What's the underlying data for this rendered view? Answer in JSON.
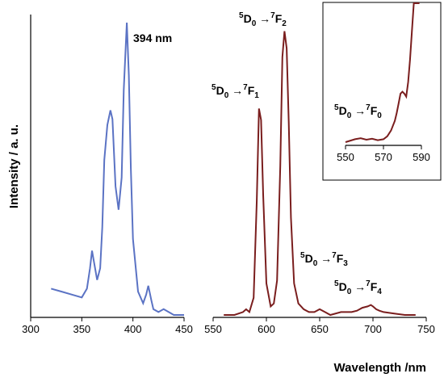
{
  "chart_data": {
    "type": "line",
    "xlabel": "Wavelength /nm",
    "ylabel": "Intensity / a. u.",
    "colors": {
      "excitation": "#5b73c4",
      "emission": "#7a1e1e",
      "highlight": "#f4b8e8"
    },
    "panels": [
      {
        "name": "excitation",
        "xlim": [
          300,
          450
        ],
        "xticks": [
          "300",
          "350",
          "400",
          "450"
        ],
        "x": [
          320,
          330,
          340,
          350,
          355,
          358,
          360,
          362,
          365,
          368,
          370,
          372,
          375,
          378,
          380,
          383,
          386,
          389,
          391,
          394,
          396,
          398,
          400,
          405,
          410,
          413,
          415,
          418,
          420,
          425,
          430,
          435,
          440,
          450
        ],
        "y": [
          0.09,
          0.08,
          0.07,
          0.06,
          0.09,
          0.16,
          0.22,
          0.18,
          0.12,
          0.16,
          0.3,
          0.53,
          0.65,
          0.7,
          0.67,
          0.44,
          0.36,
          0.47,
          0.77,
          1.0,
          0.82,
          0.5,
          0.26,
          0.08,
          0.04,
          0.07,
          0.1,
          0.05,
          0.02,
          0.01,
          0.02,
          0.01,
          0.0,
          0.0
        ]
      },
      {
        "name": "emission",
        "xlim": [
          550,
          750
        ],
        "xticks": [
          "550",
          "600",
          "650",
          "700",
          "750"
        ],
        "x": [
          560,
          570,
          578,
          581,
          584,
          588,
          591,
          593,
          595,
          597,
          600,
          604,
          607,
          610,
          613,
          615,
          617,
          619,
          621,
          623,
          626,
          630,
          635,
          640,
          645,
          650,
          655,
          660,
          670,
          680,
          685,
          690,
          695,
          698,
          700,
          703,
          706,
          710,
          720,
          730,
          740
        ],
        "y": [
          0.0,
          0.0,
          0.01,
          0.02,
          0.01,
          0.06,
          0.4,
          0.72,
          0.68,
          0.42,
          0.11,
          0.03,
          0.04,
          0.12,
          0.52,
          0.9,
          0.99,
          0.93,
          0.67,
          0.34,
          0.11,
          0.04,
          0.02,
          0.01,
          0.01,
          0.02,
          0.01,
          0.0,
          0.01,
          0.01,
          0.015,
          0.025,
          0.03,
          0.035,
          0.03,
          0.02,
          0.015,
          0.01,
          0.005,
          0.0,
          0.0
        ]
      }
    ],
    "inset": {
      "xlim": [
        550,
        590
      ],
      "xticks": [
        "550",
        "570",
        "590"
      ],
      "x": [
        550,
        555,
        558,
        561,
        564,
        567,
        570,
        572,
        574,
        576,
        577,
        578,
        579,
        580,
        581,
        582,
        583,
        584,
        585,
        586,
        587,
        588,
        589
      ],
      "y": [
        0.0,
        0.03,
        0.04,
        0.025,
        0.035,
        0.02,
        0.03,
        0.06,
        0.12,
        0.22,
        0.3,
        0.4,
        0.5,
        0.52,
        0.5,
        0.47,
        0.62,
        0.85,
        1.15,
        1.5,
        1.85,
        2.25,
        2.7
      ]
    },
    "annotations": [
      {
        "text": "394 nm",
        "x": 394,
        "panel": "excitation"
      },
      {
        "text": "5D0 →7F1",
        "sup1": "5",
        "base1": "D",
        "sub1": "0",
        "arrow": " →",
        "sup2": "7",
        "base2": "F",
        "sub2": "1",
        "x": 593
      },
      {
        "text": "5D0 →7F2",
        "sup1": "5",
        "base1": "D",
        "sub1": "0",
        "arrow": " →",
        "sup2": "7",
        "base2": "F",
        "sub2": "2",
        "x": 617
      },
      {
        "text": "5D0 →7F3",
        "sup1": "5",
        "base1": "D",
        "sub1": "0",
        "arrow": " →",
        "sup2": "7",
        "base2": "F",
        "sub2": "3",
        "x": 650
      },
      {
        "text": "5D0 →7F4",
        "sup1": "5",
        "base1": "D",
        "sub1": "0",
        "arrow": " →",
        "sup2": "7",
        "base2": "F",
        "sub2": "4",
        "x": 698
      },
      {
        "text": "5D0 →7F0",
        "sup1": "5",
        "base1": "D",
        "sub1": "0",
        "arrow": " →",
        "sup2": "7",
        "base2": "F",
        "sub2": "0",
        "x": 580,
        "panel": "inset"
      }
    ]
  }
}
